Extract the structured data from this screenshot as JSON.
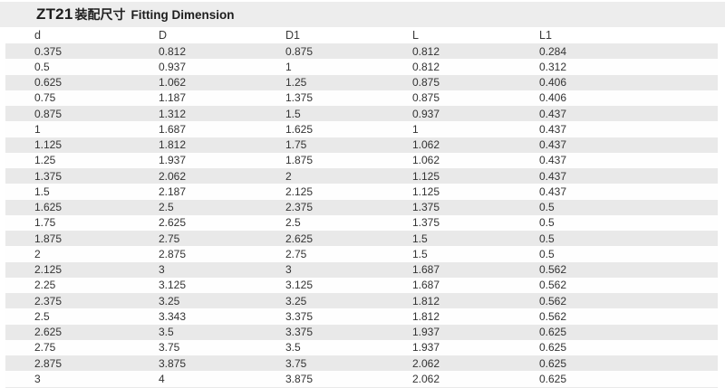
{
  "title": {
    "model": "ZT21",
    "chinese": "装配尺寸",
    "english": "Fitting Dimension"
  },
  "table": {
    "columns": [
      "d",
      "D",
      "D1",
      "L",
      "L1"
    ],
    "rows": [
      [
        "0.375",
        "0.812",
        "0.875",
        "0.812",
        "0.284"
      ],
      [
        "0.5",
        "0.937",
        "1",
        "0.812",
        "0.312"
      ],
      [
        "0.625",
        "1.062",
        "1.25",
        "0.875",
        "0.406"
      ],
      [
        "0.75",
        "1.187",
        "1.375",
        "0.875",
        "0.406"
      ],
      [
        "0.875",
        "1.312",
        "1.5",
        "0.937",
        "0.437"
      ],
      [
        "1",
        "1.687",
        "1.625",
        "1",
        "0.437"
      ],
      [
        "1.125",
        "1.812",
        "1.75",
        "1.062",
        "0.437"
      ],
      [
        "1.25",
        "1.937",
        "1.875",
        "1.062",
        "0.437"
      ],
      [
        "1.375",
        "2.062",
        "2",
        "1.125",
        "0.437"
      ],
      [
        "1.5",
        "2.187",
        "2.125",
        "1.125",
        "0.437"
      ],
      [
        "1.625",
        "2.5",
        "2.375",
        "1.375",
        "0.5"
      ],
      [
        "1.75",
        "2.625",
        "2.5",
        "1.375",
        "0.5"
      ],
      [
        "1.875",
        "2.75",
        "2.625",
        "1.5",
        "0.5"
      ],
      [
        "2",
        "2.875",
        "2.75",
        "1.5",
        "0.5"
      ],
      [
        "2.125",
        "3",
        "3",
        "1.687",
        "0.562"
      ],
      [
        "2.25",
        "3.125",
        "3.125",
        "1.687",
        "0.562"
      ],
      [
        "2.375",
        "3.25",
        "3.25",
        "1.812",
        "0.562"
      ],
      [
        "2.5",
        "3.343",
        "3.375",
        "1.812",
        "0.562"
      ],
      [
        "2.625",
        "3.5",
        "3.375",
        "1.937",
        "0.625"
      ],
      [
        "2.75",
        "3.75",
        "3.5",
        "1.937",
        "0.625"
      ],
      [
        "2.875",
        "3.875",
        "3.75",
        "2.062",
        "0.625"
      ],
      [
        "3",
        "4",
        "3.875",
        "2.062",
        "0.625"
      ]
    ]
  },
  "colors": {
    "title_bar_bg": "#ededed",
    "stripe_row_bg": "#e9e9e9",
    "text": "#333333"
  }
}
